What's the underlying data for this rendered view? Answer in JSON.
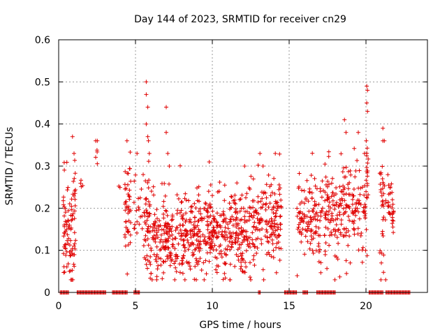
{
  "chart_data": {
    "type": "scatter",
    "title": "Day 144 of 2023, SRMTID for receiver cn29",
    "xlabel": "GPS time / hours",
    "ylabel": "SRMTID / TECUs",
    "xlim": [
      0,
      24
    ],
    "ylim": [
      0,
      0.6
    ],
    "xticks": [
      0,
      5,
      10,
      15,
      20
    ],
    "yticks": [
      0,
      0.1,
      0.2,
      0.3,
      0.4,
      0.5,
      0.6
    ],
    "ytick_labels": [
      "0",
      "0.1",
      "0.2",
      "0.3",
      "0.4",
      "0.5",
      "0.6"
    ],
    "grid": true,
    "marker": "+",
    "color": "#e00000",
    "seed": 144,
    "clusters": [
      {
        "x": [
          0.3,
          1.1
        ],
        "y_mean": 0.15,
        "y_sd": 0.07,
        "n": 90,
        "outliers": [
          [
            0.9,
            0.37
          ],
          [
            1.0,
            0.33
          ],
          [
            0.8,
            0.03
          ],
          [
            0.7,
            0.05
          ]
        ]
      },
      {
        "x": [
          1.4,
          1.6
        ],
        "y_mean": 0.26,
        "y_sd": 0.01,
        "n": 4
      },
      {
        "x": [
          2.4,
          2.6
        ],
        "y_mean": 0.33,
        "y_sd": 0.02,
        "n": 6
      },
      {
        "x": [
          3.9,
          4.1
        ],
        "y_mean": 0.25,
        "y_sd": 0.01,
        "n": 2
      },
      {
        "x": [
          4.3,
          4.7
        ],
        "y_mean": 0.2,
        "y_sd": 0.06,
        "n": 45
      },
      {
        "x": [
          4.9,
          5.6
        ],
        "y_mean": 0.2,
        "y_sd": 0.05,
        "n": 18,
        "outliers": [
          [
            5.1,
            0.33
          ],
          [
            5.5,
            0.28
          ]
        ]
      },
      {
        "x": [
          5.5,
          5.9
        ],
        "y_mean": 0.17,
        "y_sd": 0.07,
        "n": 40,
        "outliers": [
          [
            5.7,
            0.5
          ],
          [
            5.7,
            0.47
          ],
          [
            5.8,
            0.44
          ],
          [
            5.7,
            0.4
          ],
          [
            5.8,
            0.37
          ],
          [
            5.9,
            0.33
          ]
        ]
      },
      {
        "x": [
          5.9,
          7.8
        ],
        "y_mean": 0.13,
        "y_sd": 0.05,
        "n": 160,
        "outliers": [
          [
            7.0,
            0.44
          ],
          [
            7.0,
            0.38
          ],
          [
            7.1,
            0.33
          ],
          [
            7.2,
            0.3
          ]
        ]
      },
      {
        "x": [
          7.8,
          12.5
        ],
        "y_mean": 0.14,
        "y_sd": 0.05,
        "n": 420,
        "outliers": [
          [
            9.8,
            0.31
          ],
          [
            11.6,
            0.26
          ],
          [
            12.1,
            0.3
          ]
        ]
      },
      {
        "x": [
          12.5,
          14.5
        ],
        "y_mean": 0.17,
        "y_sd": 0.06,
        "n": 160,
        "outliers": [
          [
            13.1,
            0.33
          ],
          [
            14.1,
            0.33
          ],
          [
            13.3,
            0.3
          ]
        ]
      },
      {
        "x": [
          15.5,
          17.3
        ],
        "y_mean": 0.17,
        "y_sd": 0.05,
        "n": 120
      },
      {
        "x": [
          17.3,
          20.1
        ],
        "y_mean": 0.2,
        "y_sd": 0.06,
        "n": 210,
        "outliers": [
          [
            18.6,
            0.41
          ],
          [
            18.7,
            0.38
          ],
          [
            19.5,
            0.38
          ],
          [
            19.9,
            0.33
          ]
        ]
      },
      {
        "x": [
          20.0,
          20.15
        ],
        "y_mean": 0.3,
        "y_sd": 0.05,
        "n": 12,
        "outliers": [
          [
            20.05,
            0.49
          ],
          [
            20.1,
            0.48
          ],
          [
            20.05,
            0.45
          ],
          [
            20.1,
            0.43
          ]
        ]
      },
      {
        "x": [
          20.9,
          21.3
        ],
        "y_mean": 0.2,
        "y_sd": 0.08,
        "n": 35,
        "outliers": [
          [
            21.1,
            0.39
          ],
          [
            21.1,
            0.36
          ],
          [
            21.0,
            0.07
          ]
        ]
      },
      {
        "x": [
          21.4,
          21.8
        ],
        "y_mean": 0.21,
        "y_sd": 0.04,
        "n": 30
      }
    ],
    "zero_segments": [
      [
        0.1,
        0.7
      ],
      [
        1.2,
        3.1
      ],
      [
        3.5,
        4.5
      ],
      [
        4.9,
        5.3
      ],
      [
        13.0,
        13.15
      ],
      [
        14.7,
        15.5
      ],
      [
        15.9,
        16.2
      ],
      [
        16.8,
        18.0
      ],
      [
        20.2,
        21.1
      ],
      [
        21.3,
        22.9
      ]
    ]
  }
}
